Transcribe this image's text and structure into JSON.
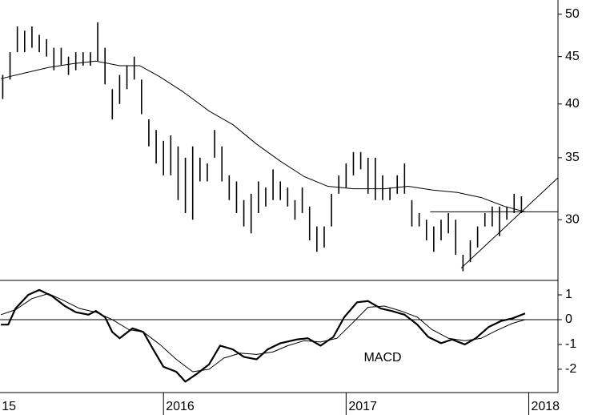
{
  "chart_data": [
    {
      "type": "ohlc",
      "log_scale": true,
      "color": "#000000",
      "xlim": [
        2015.105,
        2018.16
      ],
      "ylim": [
        25.8,
        51.8
      ],
      "yticks": [
        30,
        35,
        40,
        45,
        50
      ],
      "x": [
        2015.12,
        2015.16,
        2015.2,
        2015.24,
        2015.28,
        2015.32,
        2015.36,
        2015.4,
        2015.44,
        2015.48,
        2015.52,
        2015.56,
        2015.6,
        2015.64,
        2015.68,
        2015.72,
        2015.76,
        2015.8,
        2015.84,
        2015.88,
        2015.92,
        2015.96,
        2016,
        2016.04,
        2016.08,
        2016.12,
        2016.16,
        2016.2,
        2016.24,
        2016.28,
        2016.32,
        2016.36,
        2016.4,
        2016.44,
        2016.48,
        2016.52,
        2016.56,
        2016.6,
        2016.64,
        2016.68,
        2016.72,
        2016.76,
        2016.8,
        2016.84,
        2016.88,
        2016.92,
        2016.96,
        2017,
        2017.04,
        2017.08,
        2017.12,
        2017.16,
        2017.2,
        2017.24,
        2017.28,
        2017.32,
        2017.36,
        2017.4,
        2017.44,
        2017.48,
        2017.52,
        2017.56,
        2017.6,
        2017.64,
        2017.68,
        2017.72,
        2017.76,
        2017.8,
        2017.84,
        2017.88,
        2017.92,
        2017.96
      ],
      "high": [
        43,
        45.5,
        48.5,
        48,
        48.5,
        47.5,
        47,
        46,
        46,
        45,
        45.5,
        45.5,
        45.5,
        49,
        46,
        41.5,
        43,
        44,
        45,
        42.5,
        38.5,
        37.5,
        36.5,
        37,
        36,
        35,
        36,
        35,
        34.5,
        37.5,
        36,
        33.5,
        33,
        31.5,
        32,
        33,
        32.5,
        34,
        33,
        32.5,
        31.5,
        32.5,
        31,
        29.5,
        29.5,
        32,
        33.5,
        34.5,
        35.5,
        35.5,
        35,
        35,
        33.5,
        32.5,
        33.5,
        34.5,
        31.5,
        30.5,
        30,
        29.5,
        30,
        30.5,
        30,
        27.5,
        28.5,
        29.5,
        30.5,
        31,
        31,
        31,
        32,
        31.8
      ],
      "low": [
        40.5,
        42.5,
        45.5,
        45.5,
        46,
        45.5,
        45,
        43.5,
        44,
        43,
        43.5,
        44,
        44,
        44.5,
        42,
        38.5,
        40,
        41.5,
        42.5,
        39,
        36,
        34.5,
        33.5,
        33.5,
        31.5,
        30.5,
        30,
        33,
        33,
        35,
        33,
        31.5,
        30.5,
        29.5,
        29,
        30.5,
        31,
        31.5,
        31.5,
        31,
        30,
        30.5,
        28.5,
        27.7,
        28,
        29.5,
        32,
        32.5,
        33.5,
        34,
        32,
        31.5,
        31.5,
        31.5,
        32,
        32,
        29.5,
        29.5,
        28.5,
        27.7,
        28.5,
        29,
        27.5,
        26.4,
        27,
        28,
        29.5,
        29.5,
        28.8,
        30,
        30.5,
        30.5
      ],
      "ma": {
        "x": [
          2015.11,
          2015.24,
          2015.37,
          2015.5,
          2015.63,
          2015.76,
          2015.87,
          2015.98,
          2016.11,
          2016.25,
          2016.38,
          2016.51,
          2016.64,
          2016.77,
          2016.9,
          2017.04,
          2017.21,
          2017.34,
          2017.47,
          2017.61,
          2017.74,
          2017.87,
          2017.98
        ],
        "values": [
          42.6,
          43.2,
          43.8,
          44.2,
          44.5,
          44,
          44,
          42.8,
          41.2,
          39.3,
          38,
          36.2,
          34.7,
          33.4,
          32.6,
          32.4,
          32.4,
          32.6,
          32.3,
          32.1,
          31.7,
          31,
          30.6
        ]
      },
      "lines": [
        {
          "x": [
            2017.46,
            2018.16
          ],
          "y": [
            30.6,
            30.6
          ]
        },
        {
          "x": [
            2017.63,
            2018.16
          ],
          "y": [
            26.6,
            33.3
          ]
        }
      ]
    },
    {
      "type": "line",
      "annotation": "MACD",
      "xlim": [
        2015.105,
        2018.16
      ],
      "ylim": [
        -2.94,
        1.55
      ],
      "yticks": [
        -2,
        -1,
        0,
        1
      ],
      "hlines": [
        0
      ],
      "xticks": [
        {
          "value": 2015,
          "label": "15"
        },
        2016,
        2017,
        2018
      ],
      "series": [
        {
          "color": "#000000",
          "width": 2.2,
          "x": [
            2015.11,
            2015.15,
            2015.19,
            2015.26,
            2015.32,
            2015.39,
            2015.46,
            2015.52,
            2015.59,
            2015.63,
            2015.68,
            2015.72,
            2015.76,
            2015.83,
            2015.89,
            2015.94,
            2016,
            2016.07,
            2016.12,
            2016.18,
            2016.25,
            2016.31,
            2016.38,
            2016.44,
            2016.51,
            2016.57,
            2016.64,
            2016.73,
            2016.79,
            2016.86,
            2016.93,
            2016.99,
            2017.06,
            2017.12,
            2017.19,
            2017.25,
            2017.32,
            2017.39,
            2017.45,
            2017.52,
            2017.58,
            2017.65,
            2017.71,
            2017.78,
            2017.85,
            2017.91,
            2017.98
          ],
          "values": [
            -0.2,
            -0.2,
            0.45,
            1.0,
            1.2,
            0.95,
            0.55,
            0.3,
            0.2,
            0.35,
            0.1,
            -0.5,
            -0.75,
            -0.35,
            -0.5,
            -1.15,
            -1.9,
            -2.1,
            -2.5,
            -2.2,
            -1.8,
            -1.05,
            -1.2,
            -1.5,
            -1.6,
            -1.2,
            -0.95,
            -0.8,
            -0.75,
            -1.05,
            -0.7,
            0.1,
            0.7,
            0.75,
            0.45,
            0.35,
            0.2,
            -0.2,
            -0.7,
            -0.95,
            -0.8,
            -1.0,
            -0.75,
            -0.3,
            -0.05,
            0.05,
            0.25
          ]
        },
        {
          "color": "#000000",
          "width": 1,
          "x": [
            2015.11,
            2015.19,
            2015.28,
            2015.37,
            2015.46,
            2015.54,
            2015.63,
            2015.72,
            2015.81,
            2015.89,
            2015.98,
            2016.07,
            2016.16,
            2016.25,
            2016.33,
            2016.42,
            2016.51,
            2016.6,
            2016.68,
            2016.77,
            2016.86,
            2016.95,
            2017.04,
            2017.12,
            2017.21,
            2017.3,
            2017.39,
            2017.47,
            2017.56,
            2017.65,
            2017.74,
            2017.82,
            2017.91,
            2017.98
          ],
          "values": [
            0.2,
            0.4,
            0.85,
            1.05,
            0.75,
            0.45,
            0.3,
            0.0,
            -0.4,
            -0.5,
            -1.0,
            -1.6,
            -2.1,
            -2.0,
            -1.55,
            -1.35,
            -1.4,
            -1.3,
            -1.05,
            -0.85,
            -0.9,
            -0.75,
            -0.1,
            0.5,
            0.55,
            0.35,
            0.1,
            -0.4,
            -0.75,
            -0.85,
            -0.75,
            -0.45,
            -0.15,
            0.0
          ]
        }
      ]
    }
  ]
}
